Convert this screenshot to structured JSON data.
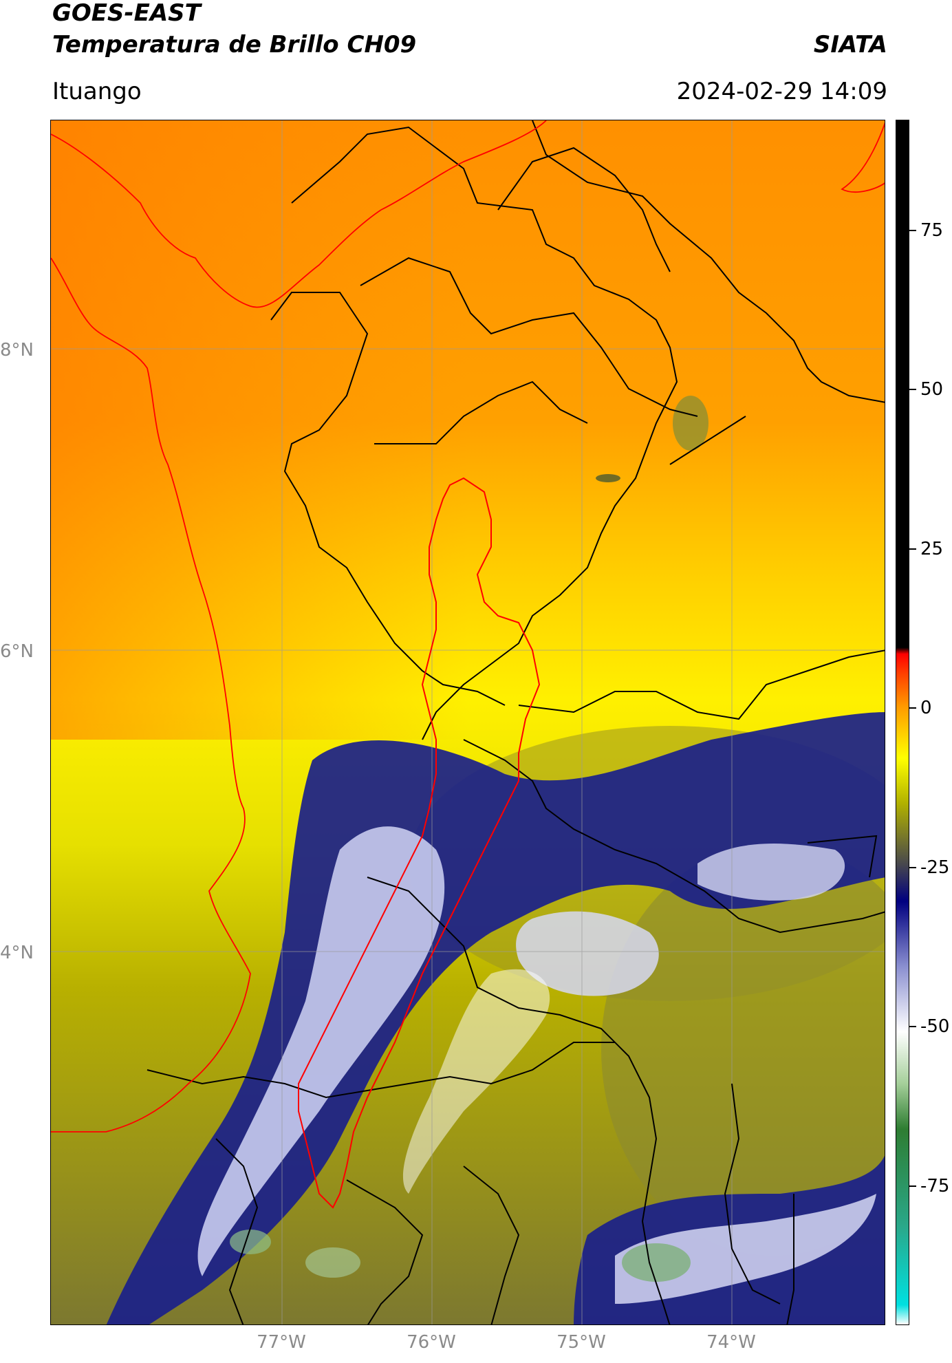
{
  "header": {
    "title_line1": "GOES-EAST",
    "title_line2": "Temperatura de Brillo CH09",
    "agency": "SIATA",
    "region": "Ituango",
    "timestamp": "2024-02-29 14:09"
  },
  "map": {
    "lat_labels": [
      "8°N",
      "6°N",
      "4°N"
    ],
    "lon_labels": [
      "77°W",
      "76°W",
      "75°W",
      "74°W"
    ],
    "outline_colors": {
      "basin": "#ff0000",
      "coast": "#ff0000",
      "borders": "#000000"
    }
  },
  "colorbar": {
    "ticks": [
      "75",
      "50",
      "25",
      "0",
      "-25",
      "-50",
      "-75"
    ],
    "stops": [
      {
        "value": -95,
        "color": "#ffffff"
      },
      {
        "value": -92,
        "color": "#00e0e0"
      },
      {
        "value": -80,
        "color": "#2aa88a"
      },
      {
        "value": -65,
        "color": "#2e7d32"
      },
      {
        "value": -58,
        "color": "#a5cf9a"
      },
      {
        "value": -50,
        "color": "#ffffff"
      },
      {
        "value": -40,
        "color": "#8a8fd0"
      },
      {
        "value": -30,
        "color": "#000080"
      },
      {
        "value": -24,
        "color": "#4b4b4b"
      },
      {
        "value": -15,
        "color": "#b0b000"
      },
      {
        "value": -8,
        "color": "#ffff00"
      },
      {
        "value": 0,
        "color": "#ff9900"
      },
      {
        "value": 5,
        "color": "#ff4000"
      },
      {
        "value": 8,
        "color": "#ff0000"
      },
      {
        "value": 9,
        "color": "#000000"
      },
      {
        "value": 90,
        "color": "#000000"
      }
    ]
  }
}
